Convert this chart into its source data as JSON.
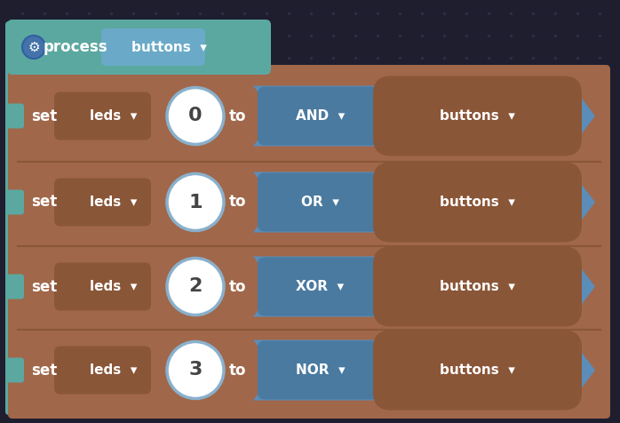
{
  "bg_color": "#1e1e2e",
  "dot_color": "#2d2d4a",
  "teal": "#5ba8a0",
  "brown": "#a0674a",
  "brown_dark": "#8a5638",
  "brown_mid": "#956050",
  "blue": "#5b8db8",
  "blue_dark": "#4a7aa0",
  "blue_header": "#6aaac8",
  "gear_blue": "#4472aa",
  "white": "#ffffff",
  "circle_border": "#8ab0cc",
  "num_color": "#444444",
  "rows": [
    {
      "number": "0",
      "gate": "AND"
    },
    {
      "number": "1",
      "gate": "OR"
    },
    {
      "number": "2",
      "gate": "XOR"
    },
    {
      "number": "3",
      "gate": "NOR"
    }
  ],
  "fig_w": 6.98,
  "fig_h": 4.76,
  "dpi": 100
}
